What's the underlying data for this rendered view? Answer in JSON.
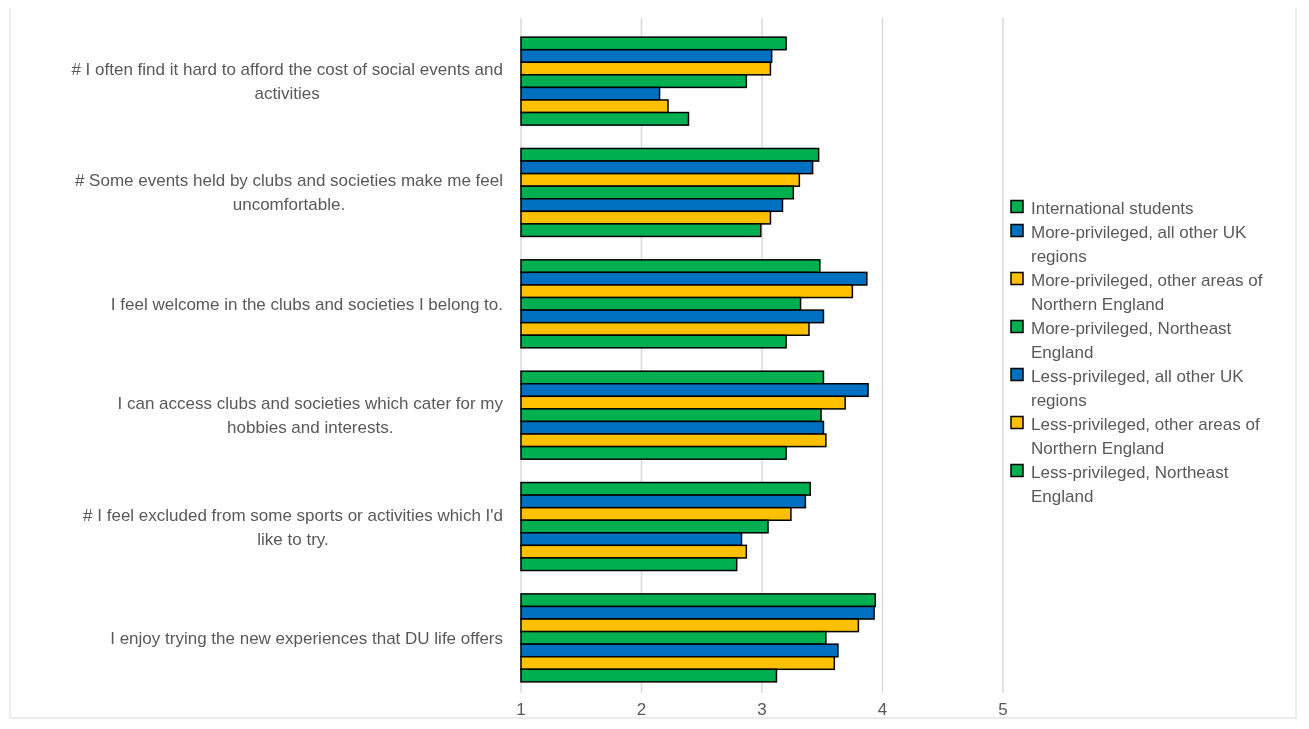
{
  "chart_data": {
    "type": "bar",
    "orientation": "horizontal",
    "categories": [
      "# I often find it hard to afford the cost of social events and activities",
      "# Some events held by clubs and societies make me feel uncomfortable.",
      "I feel welcome in the clubs and societies I belong to.",
      "I can access clubs and societies which cater for my hobbies and interests.",
      "# I feel excluded from some sports or activities which I'd like to try.",
      "I enjoy trying the new experiences that DU life offers"
    ],
    "series": [
      {
        "name": "International students",
        "color": "#00b050",
        "values": [
          3.2,
          3.47,
          3.48,
          3.51,
          3.4,
          3.94
        ]
      },
      {
        "name": "More-privileged, all other UK regions",
        "color": "#0070c0",
        "values": [
          3.08,
          3.42,
          3.87,
          3.88,
          3.36,
          3.93
        ]
      },
      {
        "name": "More-privileged, other areas of Northern England",
        "color": "#ffc000",
        "values": [
          3.07,
          3.31,
          3.75,
          3.69,
          3.24,
          3.8
        ]
      },
      {
        "name": "More-privileged, Northeast England",
        "color": "#00b050",
        "values": [
          2.87,
          3.26,
          3.32,
          3.49,
          3.05,
          3.53
        ]
      },
      {
        "name": "Less-privileged, all other UK regions",
        "color": "#0070c0",
        "values": [
          2.15,
          3.17,
          3.51,
          3.51,
          2.83,
          3.63
        ]
      },
      {
        "name": "Less-privileged, other areas of Northern England",
        "color": "#ffc000",
        "values": [
          2.22,
          3.07,
          3.39,
          3.53,
          2.87,
          3.6
        ]
      },
      {
        "name": "Less-privileged, Northeast England",
        "color": "#00b050",
        "values": [
          2.39,
          2.99,
          3.2,
          3.2,
          2.79,
          3.12
        ]
      }
    ],
    "xlim": [
      1,
      5
    ],
    "xticks": [
      1,
      2,
      3,
      4,
      5
    ],
    "grid": "x",
    "legend": "right"
  }
}
